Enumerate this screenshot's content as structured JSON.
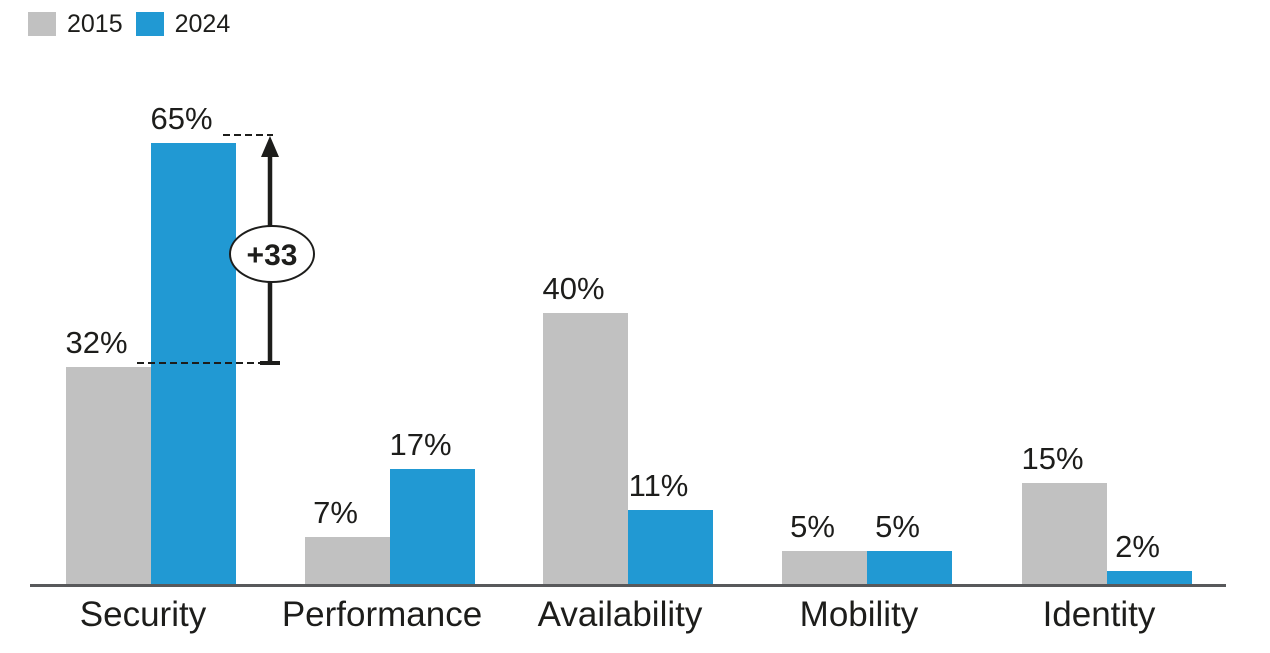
{
  "chart_data": {
    "type": "bar",
    "title": "",
    "categories": [
      "Security",
      "Performance",
      "Availability",
      "Mobility",
      "Identity"
    ],
    "series": [
      {
        "name": "2015",
        "color": "#C1C1C1",
        "values": [
          32,
          7,
          40,
          5,
          15
        ],
        "labels": [
          "32%",
          "7%",
          "40%",
          "5%",
          "15%"
        ]
      },
      {
        "name": "2024",
        "color": "#2199D3",
        "values": [
          65,
          17,
          11,
          5,
          2
        ],
        "labels": [
          "65%",
          "17%",
          "11%",
          "5%",
          "2%"
        ]
      }
    ],
    "value_suffix": "%",
    "ylim": [
      0,
      70
    ],
    "grid": false,
    "legend_position": "top-left",
    "axis_color": "#58595B",
    "text_color": "#1D1D1B",
    "annotation": {
      "label": "+33",
      "category": "Security",
      "from_series": "2015",
      "from_value": 32,
      "to_series": "2024",
      "to_value": 65
    }
  }
}
